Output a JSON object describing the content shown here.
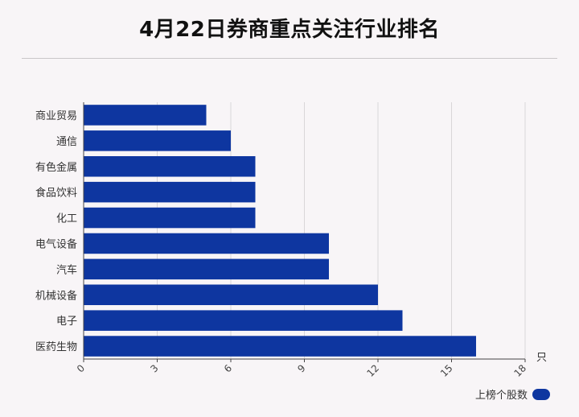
{
  "title": "4月22日券商重点关注行业排名",
  "chart_data": {
    "type": "bar",
    "orientation": "horizontal",
    "title": "4月22日券商重点关注行业排名",
    "categories": [
      "商业贸易",
      "通信",
      "有色金属",
      "食品饮料",
      "化工",
      "电气设备",
      "汽车",
      "机械设备",
      "电子",
      "医药生物"
    ],
    "series": [
      {
        "name": "上榜个股数",
        "values": [
          5,
          6,
          7,
          7,
          7,
          10,
          10,
          12,
          13,
          16
        ]
      }
    ],
    "xlim": [
      0,
      18
    ],
    "xticks": [
      0,
      3,
      6,
      9,
      12,
      15,
      18
    ],
    "xunit": "只",
    "grid": true,
    "legend_position": "bottom-right"
  },
  "colors": {
    "bar": "#0e36a0",
    "grid": "#d9d6d8",
    "axis": "#444444"
  }
}
